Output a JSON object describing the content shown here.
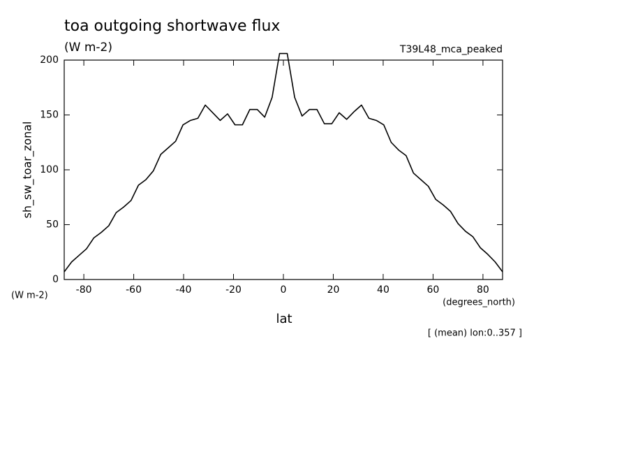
{
  "chart_data": {
    "type": "line",
    "title": "toa outgoing shortwave flux",
    "units": "(W m-2)",
    "dataset": "T39L48_mca_peaked",
    "ylabel": "sh_sw_toar_zonal",
    "y_units": "(W m-2)",
    "x_units": "(degrees_north)",
    "xlabel": "lat",
    "note": "[ (mean) lon:0..357 ]",
    "x": [
      -87.86,
      -84.89,
      -81.91,
      -78.93,
      -75.96,
      -72.98,
      -70.0,
      -67.03,
      -64.05,
      -61.07,
      -58.1,
      -55.12,
      -52.14,
      -49.17,
      -46.19,
      -43.21,
      -40.24,
      -37.26,
      -34.28,
      -31.31,
      -28.33,
      -25.35,
      -22.38,
      -19.4,
      -16.42,
      -13.45,
      -10.47,
      -7.49,
      -4.52,
      -1.54,
      1.54,
      4.52,
      7.49,
      10.47,
      13.45,
      16.42,
      19.4,
      22.38,
      25.35,
      28.33,
      31.31,
      34.28,
      37.26,
      40.24,
      43.21,
      46.19,
      49.17,
      52.14,
      55.12,
      58.1,
      61.07,
      64.05,
      67.03,
      70.0,
      72.98,
      75.96,
      78.93,
      81.91,
      84.89,
      87.86
    ],
    "series": [
      {
        "name": "sh_sw_toar_zonal",
        "color": "#000000",
        "values": [
          7,
          16,
          22,
          28,
          38,
          43,
          49,
          61,
          66,
          72,
          86,
          91,
          99,
          114,
          120,
          126,
          141,
          145,
          147,
          159,
          152,
          145,
          151,
          141,
          141,
          155,
          155,
          148,
          166,
          206,
          206,
          166,
          149,
          155,
          155,
          142,
          142,
          152,
          146,
          153,
          159,
          147,
          145,
          141,
          125,
          118,
          113,
          97,
          91,
          85,
          73,
          68,
          62,
          51,
          44,
          39,
          29,
          23,
          16,
          7
        ]
      }
    ],
    "xlim": [
      -87.86,
      87.86
    ],
    "ylim": [
      0,
      200
    ],
    "xticks": [
      -80,
      -60,
      -40,
      -20,
      0,
      20,
      40,
      60,
      80
    ],
    "yticks": [
      0,
      50,
      100,
      150,
      200
    ]
  }
}
